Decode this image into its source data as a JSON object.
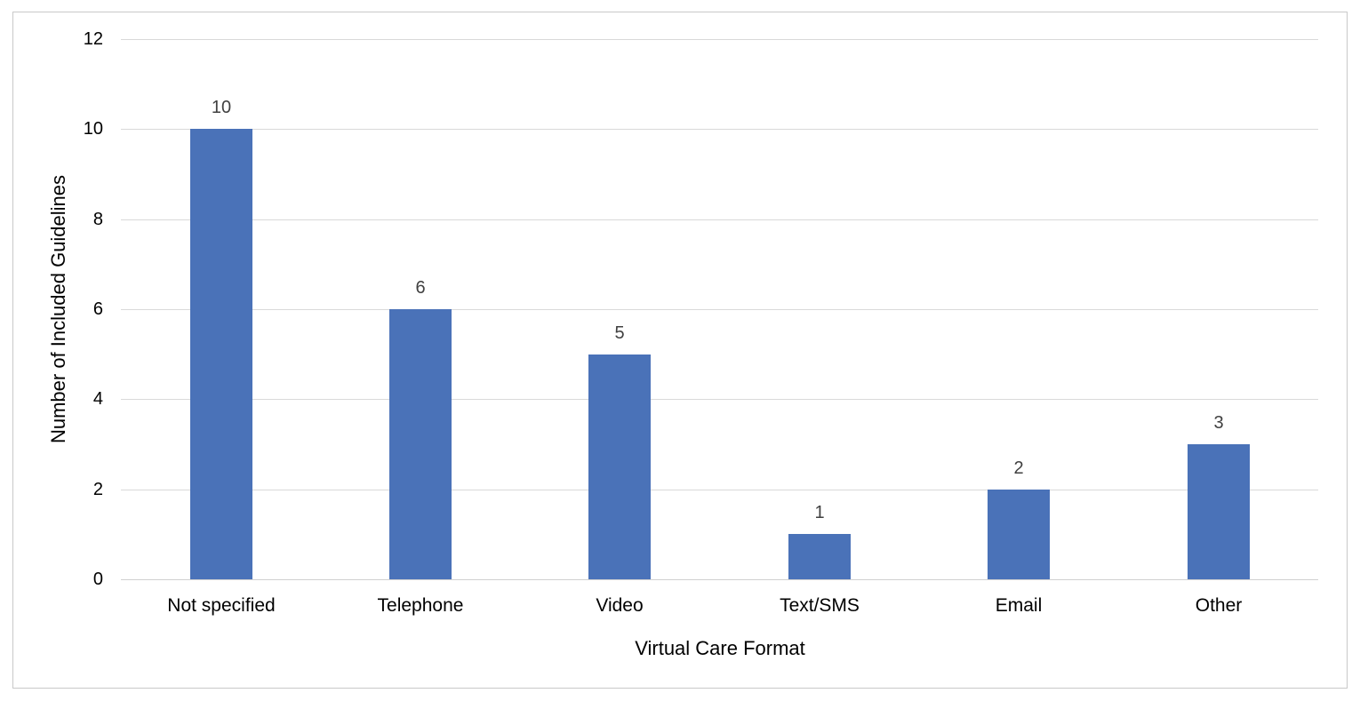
{
  "chart_data": {
    "type": "bar",
    "title": "",
    "xlabel": "Virtual Care Format",
    "ylabel": "Number of Included Guidelines",
    "categories": [
      "Not specified",
      "Telephone",
      "Video",
      "Text/SMS",
      "Email",
      "Other"
    ],
    "values": [
      10,
      6,
      5,
      1,
      2,
      3
    ],
    "ylim": [
      0,
      12
    ],
    "yticks": [
      "0",
      "2",
      "4",
      "6",
      "8",
      "10",
      "12"
    ],
    "data_labels": [
      "10",
      "6",
      "5",
      "1",
      "2",
      "3"
    ],
    "grid": true,
    "legend": "none",
    "bar_color": "#4a72b8"
  }
}
